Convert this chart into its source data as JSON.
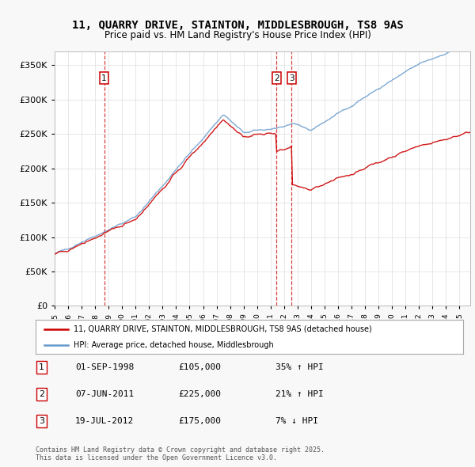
{
  "title": "11, QUARRY DRIVE, STAINTON, MIDDLESBROUGH, TS8 9AS",
  "subtitle": "Price paid vs. HM Land Registry's House Price Index (HPI)",
  "red_label": "11, QUARRY DRIVE, STAINTON, MIDDLESBROUGH, TS8 9AS (detached house)",
  "blue_label": "HPI: Average price, detached house, Middlesbrough",
  "transactions": [
    {
      "num": 1,
      "date": "01-SEP-1998",
      "price": 105000,
      "pct": "35%",
      "dir": "↑"
    },
    {
      "num": 2,
      "date": "07-JUN-2011",
      "price": 225000,
      "pct": "21%",
      "dir": "↑"
    },
    {
      "num": 3,
      "date": "19-JUL-2012",
      "price": 175000,
      "pct": "7%",
      "dir": "↓"
    }
  ],
  "transaction_dates_decimal": [
    1998.67,
    2011.44,
    2012.55
  ],
  "ylim": [
    0,
    370000
  ],
  "yticks": [
    0,
    50000,
    100000,
    150000,
    200000,
    250000,
    300000,
    350000
  ],
  "footer": "Contains HM Land Registry data © Crown copyright and database right 2025.\nThis data is licensed under the Open Government Licence v3.0.",
  "bg_color": "#f8f8f8",
  "plot_bg_color": "#ffffff",
  "red_color": "#cc0000",
  "blue_color": "#6699cc",
  "vline_color": "#cc0000",
  "grid_color": "#dddddd",
  "n_points": 372
}
